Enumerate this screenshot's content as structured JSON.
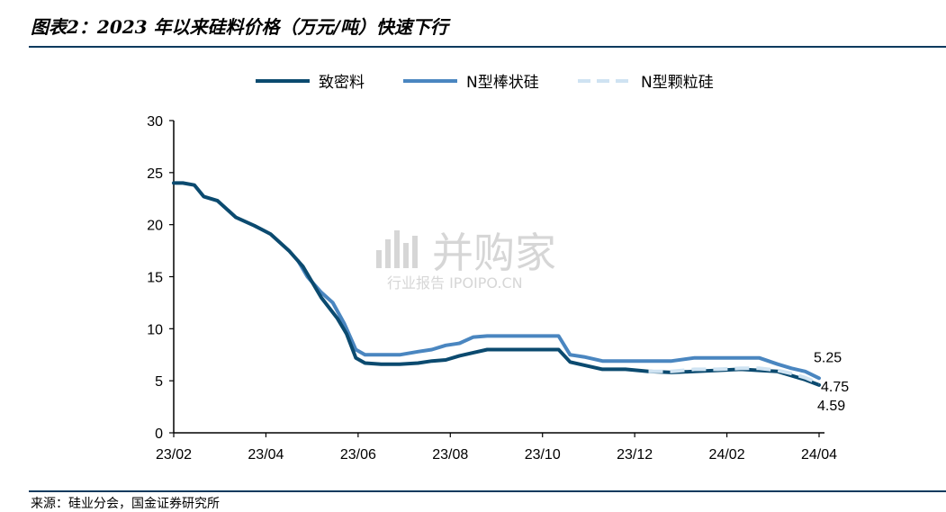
{
  "header": {
    "title": "图表2：2023 年以来硅料价格（万元/吨）快速下行"
  },
  "footer": {
    "source": "来源：硅业分会，国金证券研究所"
  },
  "watermark": {
    "main": "并购家",
    "sub": "行业报告 IPOIPO.CN"
  },
  "colors": {
    "series_dense": "#0b4a6f",
    "series_rod": "#4a86c0",
    "series_granular": "#cfe3f2",
    "axis": "#000000",
    "rule": "#0b3a5e"
  },
  "chart_data": {
    "type": "line",
    "title": "",
    "xlabel": "",
    "ylabel": "",
    "ylim": [
      0,
      30
    ],
    "yticks": [
      0,
      5,
      10,
      15,
      20,
      25,
      30
    ],
    "xlim": [
      0,
      14.5
    ],
    "xticks": [
      {
        "value": 0,
        "label": "23/02"
      },
      {
        "value": 2,
        "label": "23/04"
      },
      {
        "value": 4,
        "label": "23/06"
      },
      {
        "value": 6,
        "label": "23/08"
      },
      {
        "value": 8,
        "label": "23/10"
      },
      {
        "value": 10,
        "label": "23/12"
      },
      {
        "value": 12,
        "label": "24/02"
      },
      {
        "value": 14,
        "label": "24/04"
      }
    ],
    "grid": false,
    "legend_position": "top",
    "series": [
      {
        "name": "致密料",
        "style": "solid",
        "color": "#0b4a6f",
        "x": [
          0,
          0.2,
          0.45,
          0.65,
          0.95,
          1.35,
          1.75,
          2.1,
          2.5,
          2.8,
          3.2,
          3.55,
          3.75,
          3.95,
          4.15,
          4.5,
          4.9,
          5.3,
          5.6,
          5.9,
          6.2,
          6.5,
          6.8,
          7.2,
          7.6,
          8.0,
          8.35,
          8.6,
          8.9,
          9.3,
          9.8,
          10.3,
          10.8,
          11.3,
          11.8,
          12.3,
          12.7,
          13.1,
          13.4,
          13.7,
          14.0
        ],
        "y": [
          24.0,
          24.0,
          23.8,
          22.7,
          22.3,
          20.7,
          19.9,
          19.1,
          17.5,
          16.0,
          13.0,
          11.0,
          9.5,
          7.2,
          6.7,
          6.6,
          6.6,
          6.7,
          6.9,
          7.0,
          7.4,
          7.7,
          8.0,
          8.0,
          8.0,
          8.0,
          8.0,
          6.8,
          6.5,
          6.1,
          6.1,
          5.9,
          5.8,
          5.9,
          6.0,
          6.1,
          6.0,
          5.9,
          5.5,
          5.1,
          4.59
        ]
      },
      {
        "name": "N型棒状硅",
        "style": "solid",
        "color": "#4a86c0",
        "x": [
          2.7,
          2.9,
          3.2,
          3.45,
          3.7,
          3.95,
          4.15,
          4.5,
          4.9,
          5.3,
          5.6,
          5.9,
          6.2,
          6.5,
          6.8,
          7.2,
          7.6,
          8.0,
          8.35,
          8.6,
          8.9,
          9.3,
          9.8,
          10.3,
          10.8,
          11.3,
          11.8,
          12.3,
          12.7,
          13.1,
          13.4,
          13.7,
          14.0
        ],
        "y": [
          16.5,
          15.0,
          13.5,
          12.5,
          10.5,
          8.0,
          7.5,
          7.5,
          7.5,
          7.8,
          8.0,
          8.4,
          8.6,
          9.2,
          9.3,
          9.3,
          9.3,
          9.3,
          9.3,
          7.5,
          7.3,
          6.9,
          6.9,
          6.9,
          6.9,
          7.2,
          7.2,
          7.2,
          7.2,
          6.6,
          6.2,
          5.9,
          5.25
        ]
      },
      {
        "name": "N型颗粒硅",
        "style": "dashed",
        "color": "#cfe3f2",
        "x": [
          10.3,
          10.8,
          11.3,
          11.8,
          12.3,
          12.7,
          13.1,
          13.4,
          13.7,
          14.0
        ],
        "y": [
          5.9,
          5.9,
          6.1,
          6.1,
          6.2,
          6.2,
          6.0,
          5.7,
          5.3,
          4.75
        ]
      }
    ],
    "annotations": [
      {
        "text": "5.25",
        "x": 14.0,
        "y": 5.25
      },
      {
        "text": "4.75",
        "x": 14.0,
        "y": 4.75
      },
      {
        "text": "4.59",
        "x": 14.0,
        "y": 4.59
      }
    ]
  }
}
